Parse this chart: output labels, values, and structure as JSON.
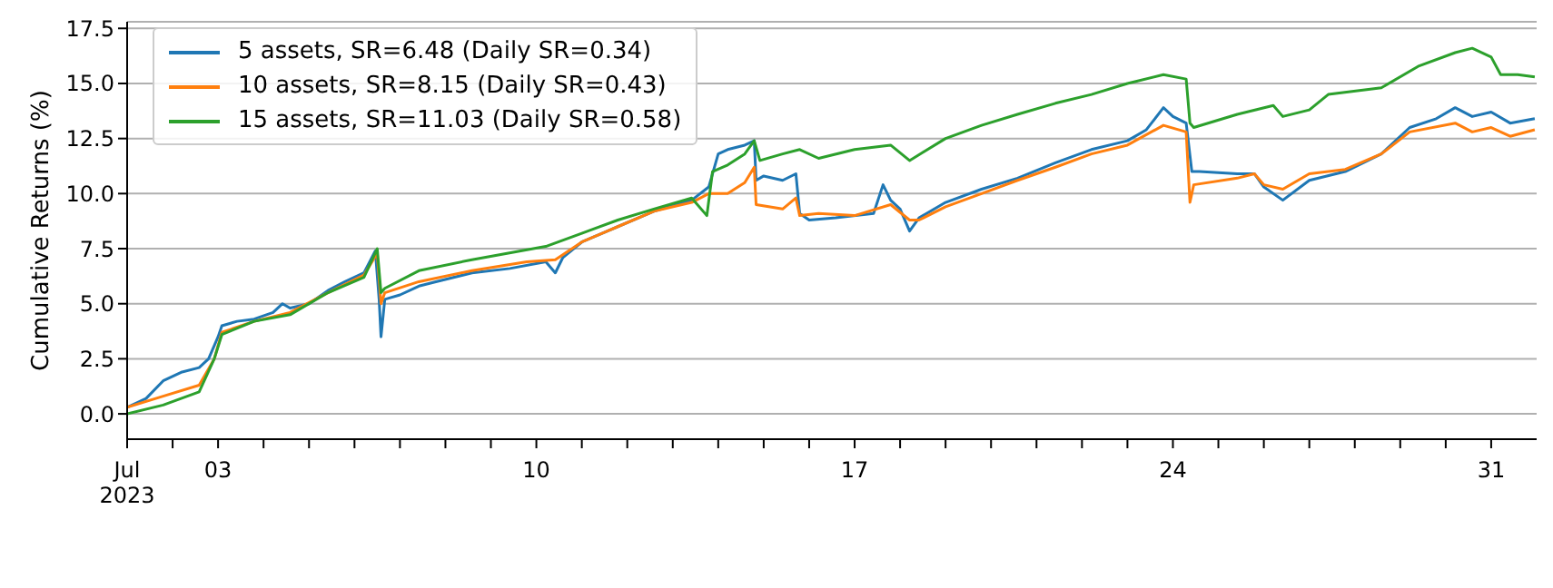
{
  "chart_data": {
    "type": "line",
    "ylabel": "Cumulative Returns (%)",
    "legend": "top left",
    "grid": "y",
    "line_style": "solid",
    "marker": "none",
    "xlim": [
      "2023-07-01T00:00",
      "2023-08-01T00:00"
    ],
    "xticks": [
      {
        "value": "2023-07-01",
        "label": "Jul\n2023"
      },
      {
        "value": "2023-07-02",
        "label": null
      },
      {
        "value": "2023-07-03",
        "label": "03"
      },
      {
        "value": "2023-07-04",
        "label": null
      },
      {
        "value": "2023-07-05",
        "label": null
      },
      {
        "value": "2023-07-06",
        "label": null
      },
      {
        "value": "2023-07-07",
        "label": null
      },
      {
        "value": "2023-07-08",
        "label": null
      },
      {
        "value": "2023-07-09",
        "label": null
      },
      {
        "value": "2023-07-10",
        "label": "10"
      },
      {
        "value": "2023-07-11",
        "label": null
      },
      {
        "value": "2023-07-12",
        "label": null
      },
      {
        "value": "2023-07-13",
        "label": null
      },
      {
        "value": "2023-07-14",
        "label": null
      },
      {
        "value": "2023-07-15",
        "label": null
      },
      {
        "value": "2023-07-16",
        "label": null
      },
      {
        "value": "2023-07-17",
        "label": "17"
      },
      {
        "value": "2023-07-18",
        "label": null
      },
      {
        "value": "2023-07-19",
        "label": null
      },
      {
        "value": "2023-07-20",
        "label": null
      },
      {
        "value": "2023-07-21",
        "label": null
      },
      {
        "value": "2023-07-22",
        "label": null
      },
      {
        "value": "2023-07-23",
        "label": null
      },
      {
        "value": "2023-07-24",
        "label": "24"
      },
      {
        "value": "2023-07-25",
        "label": null
      },
      {
        "value": "2023-07-26",
        "label": null
      },
      {
        "value": "2023-07-27",
        "label": null
      },
      {
        "value": "2023-07-28",
        "label": null
      },
      {
        "value": "2023-07-29",
        "label": null
      },
      {
        "value": "2023-07-30",
        "label": null
      },
      {
        "value": "2023-07-31",
        "label": "31"
      }
    ],
    "ylim": [
      -1.15,
      17.8
    ],
    "yticks": [
      {
        "value": 0,
        "label": "0.0"
      },
      {
        "value": 2.5,
        "label": "2.5"
      },
      {
        "value": 5,
        "label": "5.0"
      },
      {
        "value": 7.5,
        "label": "7.5"
      },
      {
        "value": 10,
        "label": "10.0"
      },
      {
        "value": 12.5,
        "label": "12.5"
      },
      {
        "value": 15,
        "label": "15.0"
      },
      {
        "value": 17.5,
        "label": "17.5"
      }
    ],
    "series": [
      {
        "name": "5 assets, SR=6.48 (Daily SR=0.34)",
        "color": "#1f77b4",
        "x": [
          "2023-07-01T00:00",
          "2023-07-01T10:00",
          "2023-07-01T19:00",
          "2023-07-02T05:00",
          "2023-07-02T14:00",
          "2023-07-02T19:00",
          "2023-07-03T00:00",
          "2023-07-03T02:00",
          "2023-07-03T10:00",
          "2023-07-03T19:00",
          "2023-07-04T05:00",
          "2023-07-04T10:00",
          "2023-07-04T14:00",
          "2023-07-05T00:00",
          "2023-07-05T10:00",
          "2023-07-05T19:00",
          "2023-07-06T05:00",
          "2023-07-06T11:00",
          "2023-07-06T13:00",
          "2023-07-06T14:00",
          "2023-07-06T16:00",
          "2023-07-07T00:00",
          "2023-07-07T10:00",
          "2023-07-07T19:00",
          "2023-07-08T14:00",
          "2023-07-09T10:00",
          "2023-07-10T05:00",
          "2023-07-10T10:00",
          "2023-07-10T14:00",
          "2023-07-11T00:00",
          "2023-07-11T19:00",
          "2023-07-12T14:00",
          "2023-07-13T10:00",
          "2023-07-13T19:00",
          "2023-07-14T00:00",
          "2023-07-14T05:00",
          "2023-07-14T14:00",
          "2023-07-14T19:00",
          "2023-07-14T20:00",
          "2023-07-15T00:00",
          "2023-07-15T10:00",
          "2023-07-15T17:00",
          "2023-07-15T19:00",
          "2023-07-16T00:00",
          "2023-07-16T14:00",
          "2023-07-17T10:00",
          "2023-07-17T15:00",
          "2023-07-17T19:00",
          "2023-07-18T00:00",
          "2023-07-18T05:00",
          "2023-07-18T10:00",
          "2023-07-19T00:00",
          "2023-07-19T19:00",
          "2023-07-20T14:00",
          "2023-07-21T10:00",
          "2023-07-22T05:00",
          "2023-07-23T00:00",
          "2023-07-23T10:00",
          "2023-07-23T19:00",
          "2023-07-24T00:00",
          "2023-07-24T07:00",
          "2023-07-24T10:00",
          "2023-07-24T14:00",
          "2023-07-25T10:00",
          "2023-07-25T19:00",
          "2023-07-26T00:00",
          "2023-07-26T10:00",
          "2023-07-27T00:00",
          "2023-07-27T19:00",
          "2023-07-28T14:00",
          "2023-07-29T05:00",
          "2023-07-29T19:00",
          "2023-07-30T05:00",
          "2023-07-30T14:00",
          "2023-07-31T00:00",
          "2023-07-31T10:00",
          "2023-07-31T23:00"
        ],
        "values": [
          0.3,
          0.7,
          1.5,
          1.9,
          2.1,
          2.5,
          3.5,
          4.0,
          4.2,
          4.3,
          4.6,
          5.0,
          4.8,
          5.0,
          5.6,
          6.0,
          6.4,
          7.4,
          5.2,
          3.5,
          5.2,
          5.4,
          5.8,
          6.0,
          6.4,
          6.6,
          6.9,
          6.4,
          7.1,
          7.8,
          8.5,
          9.2,
          9.7,
          10.3,
          11.8,
          12.0,
          12.2,
          12.4,
          10.6,
          10.8,
          10.6,
          10.9,
          9.1,
          8.8,
          8.9,
          9.1,
          10.4,
          9.7,
          9.3,
          8.3,
          8.9,
          9.6,
          10.2,
          10.7,
          11.4,
          12.0,
          12.4,
          12.9,
          13.9,
          13.5,
          13.2,
          11.0,
          11.0,
          10.9,
          10.9,
          10.3,
          9.7,
          10.6,
          11.0,
          11.8,
          13.0,
          13.4,
          13.9,
          13.5,
          13.7,
          13.2,
          13.4
        ]
      },
      {
        "name": "10 assets, SR=8.15 (Daily SR=0.43)",
        "color": "#ff7f0e",
        "x": [
          "2023-07-01T00:00",
          "2023-07-01T19:00",
          "2023-07-02T14:00",
          "2023-07-02T22:00",
          "2023-07-03T02:00",
          "2023-07-03T19:00",
          "2023-07-04T14:00",
          "2023-07-05T10:00",
          "2023-07-06T05:00",
          "2023-07-06T12:00",
          "2023-07-06T14:00",
          "2023-07-06T16:00",
          "2023-07-07T10:00",
          "2023-07-08T14:00",
          "2023-07-09T19:00",
          "2023-07-10T10:00",
          "2023-07-11T00:00",
          "2023-07-11T19:00",
          "2023-07-12T14:00",
          "2023-07-13T10:00",
          "2023-07-13T19:00",
          "2023-07-14T05:00",
          "2023-07-14T14:00",
          "2023-07-14T19:00",
          "2023-07-14T20:00",
          "2023-07-15T10:00",
          "2023-07-15T17:00",
          "2023-07-15T19:00",
          "2023-07-16T05:00",
          "2023-07-17T00:00",
          "2023-07-17T19:00",
          "2023-07-18T05:00",
          "2023-07-18T10:00",
          "2023-07-19T00:00",
          "2023-07-19T19:00",
          "2023-07-20T14:00",
          "2023-07-21T10:00",
          "2023-07-22T05:00",
          "2023-07-23T00:00",
          "2023-07-23T19:00",
          "2023-07-24T07:00",
          "2023-07-24T09:00",
          "2023-07-24T11:00",
          "2023-07-25T10:00",
          "2023-07-25T19:00",
          "2023-07-26T00:00",
          "2023-07-26T10:00",
          "2023-07-27T00:00",
          "2023-07-27T19:00",
          "2023-07-28T14:00",
          "2023-07-29T05:00",
          "2023-07-30T05:00",
          "2023-07-30T14:00",
          "2023-07-31T00:00",
          "2023-07-31T10:00",
          "2023-07-31T23:00"
        ],
        "values": [
          0.3,
          0.8,
          1.3,
          2.5,
          3.7,
          4.2,
          4.6,
          5.5,
          6.3,
          7.3,
          5.0,
          5.5,
          6.0,
          6.5,
          6.9,
          7.0,
          7.8,
          8.5,
          9.2,
          9.6,
          10.0,
          10.0,
          10.5,
          11.2,
          9.5,
          9.3,
          9.8,
          9.0,
          9.1,
          9.0,
          9.5,
          8.8,
          8.8,
          9.4,
          10.0,
          10.6,
          11.2,
          11.8,
          12.2,
          13.1,
          12.8,
          9.6,
          10.4,
          10.7,
          10.9,
          10.4,
          10.2,
          10.9,
          11.1,
          11.8,
          12.8,
          13.2,
          12.8,
          13.0,
          12.6,
          12.9
        ]
      },
      {
        "name": "15 assets, SR=11.03 (Daily SR=0.58)",
        "color": "#2ca02c",
        "x": [
          "2023-07-01T00:00",
          "2023-07-01T19:00",
          "2023-07-02T14:00",
          "2023-07-02T22:00",
          "2023-07-03T02:00",
          "2023-07-03T19:00",
          "2023-07-04T14:00",
          "2023-07-05T10:00",
          "2023-07-06T05:00",
          "2023-07-06T12:00",
          "2023-07-06T14:00",
          "2023-07-06T16:00",
          "2023-07-07T10:00",
          "2023-07-08T14:00",
          "2023-07-10T05:00",
          "2023-07-11T00:00",
          "2023-07-11T19:00",
          "2023-07-12T14:00",
          "2023-07-13T10:00",
          "2023-07-13T18:00",
          "2023-07-13T21:00",
          "2023-07-14T05:00",
          "2023-07-14T14:00",
          "2023-07-14T19:00",
          "2023-07-14T22:00",
          "2023-07-15T10:00",
          "2023-07-15T19:00",
          "2023-07-16T05:00",
          "2023-07-17T00:00",
          "2023-07-17T19:00",
          "2023-07-18T05:00",
          "2023-07-19T00:00",
          "2023-07-19T19:00",
          "2023-07-20T14:00",
          "2023-07-21T10:00",
          "2023-07-22T05:00",
          "2023-07-23T00:00",
          "2023-07-23T19:00",
          "2023-07-24T07:00",
          "2023-07-24T09:00",
          "2023-07-24T11:00",
          "2023-07-25T10:00",
          "2023-07-26T05:00",
          "2023-07-26T10:00",
          "2023-07-27T00:00",
          "2023-07-27T10:00",
          "2023-07-28T14:00",
          "2023-07-29T10:00",
          "2023-07-30T05:00",
          "2023-07-30T14:00",
          "2023-07-31T00:00",
          "2023-07-31T05:00",
          "2023-07-31T14:00",
          "2023-07-31T23:00"
        ],
        "values": [
          0.0,
          0.4,
          1.0,
          2.5,
          3.6,
          4.2,
          4.5,
          5.5,
          6.2,
          7.5,
          5.5,
          5.7,
          6.5,
          7.0,
          7.6,
          8.2,
          8.8,
          9.3,
          9.8,
          9.0,
          11.0,
          11.3,
          11.8,
          12.4,
          11.5,
          11.8,
          12.0,
          11.6,
          12.0,
          12.2,
          11.5,
          12.5,
          13.1,
          13.6,
          14.1,
          14.5,
          15.0,
          15.4,
          15.2,
          13.2,
          13.0,
          13.6,
          14.0,
          13.5,
          13.8,
          14.5,
          14.8,
          15.8,
          16.4,
          16.6,
          16.2,
          15.4,
          15.4,
          15.3
        ]
      }
    ]
  }
}
